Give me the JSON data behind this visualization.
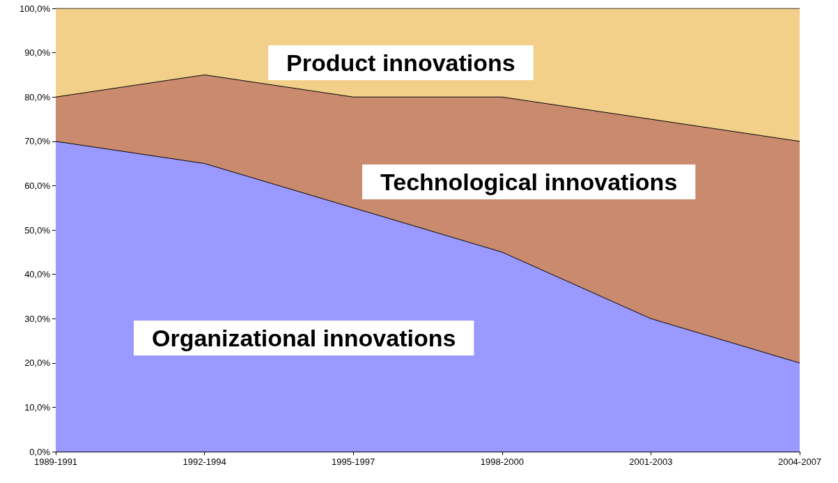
{
  "chart_data": {
    "type": "area",
    "stacked": true,
    "legend": false,
    "grid": false,
    "marker": "none",
    "categories": [
      "1989-1991",
      "1992-1994",
      "1995-1997",
      "1998-2000",
      "2001-2003",
      "2004-2007"
    ],
    "ylim": [
      0,
      100
    ],
    "yticks": [
      {
        "value": 0,
        "label": "0,0%"
      },
      {
        "value": 10,
        "label": "10,0%"
      },
      {
        "value": 20,
        "label": "20,0%"
      },
      {
        "value": 30,
        "label": "30,0%"
      },
      {
        "value": 40,
        "label": "40,0%"
      },
      {
        "value": 50,
        "label": "50,0%"
      },
      {
        "value": 60,
        "label": "60,0%"
      },
      {
        "value": 70,
        "label": "70,0%"
      },
      {
        "value": 80,
        "label": "80,0%"
      },
      {
        "value": 90,
        "label": "90,0%"
      },
      {
        "value": 100,
        "label": "100,0%"
      }
    ],
    "series": [
      {
        "name": "Organizational innovations",
        "color": "#9999ff",
        "values": [
          70,
          65,
          55,
          45,
          30,
          20
        ]
      },
      {
        "name": "Technological innovations",
        "color": "#c98a6e",
        "values": [
          10,
          20,
          25,
          35,
          45,
          50
        ]
      },
      {
        "name": "Product innovations",
        "color": "#f3d08a",
        "values": [
          20,
          15,
          20,
          20,
          25,
          30
        ]
      }
    ]
  }
}
